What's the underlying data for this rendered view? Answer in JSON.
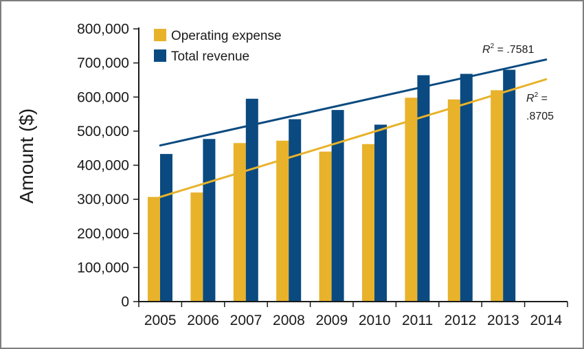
{
  "chart_data": {
    "type": "bar",
    "ylabel": "Amount ($)",
    "xlabel": "",
    "ylim": [
      0,
      800000
    ],
    "yticks": [
      0,
      100000,
      200000,
      300000,
      400000,
      500000,
      600000,
      700000,
      800000
    ],
    "ytick_labels": [
      "0",
      "100,000",
      "200,000",
      "300,000",
      "400,000",
      "500,000",
      "600,000",
      "700,000",
      "800,000"
    ],
    "categories": [
      "2005",
      "2006",
      "2007",
      "2008",
      "2009",
      "2010",
      "2011",
      "2012",
      "2013",
      "2014"
    ],
    "legend_position": "top-left",
    "grid": false,
    "series": [
      {
        "name": "Operating expense",
        "color": "#e8b22a",
        "values": [
          307000,
          320000,
          465000,
          472000,
          440000,
          462000,
          598000,
          593000,
          620000,
          null
        ]
      },
      {
        "name": "Total revenue",
        "color": "#0a4a80",
        "values": [
          433000,
          477000,
          595000,
          535000,
          562000,
          519000,
          664000,
          668000,
          680000,
          null
        ]
      }
    ],
    "trendlines": [
      {
        "series": "Total revenue",
        "color": "#0a4a80",
        "start": {
          "x": "2005",
          "y": 458000
        },
        "end": {
          "x": "2014",
          "y": 710000
        },
        "r2_prefix": "R",
        "r2_superscript": "2",
        "r2_value": " = .7581"
      },
      {
        "series": "Operating expense",
        "color": "#e8b22a",
        "start": {
          "x": "2005",
          "y": 307000
        },
        "end": {
          "x": "2014",
          "y": 652000
        },
        "r2_prefix": "R",
        "r2_superscript": "2",
        "r2_value": " =",
        "r2_value_line2": ".8705"
      }
    ]
  }
}
